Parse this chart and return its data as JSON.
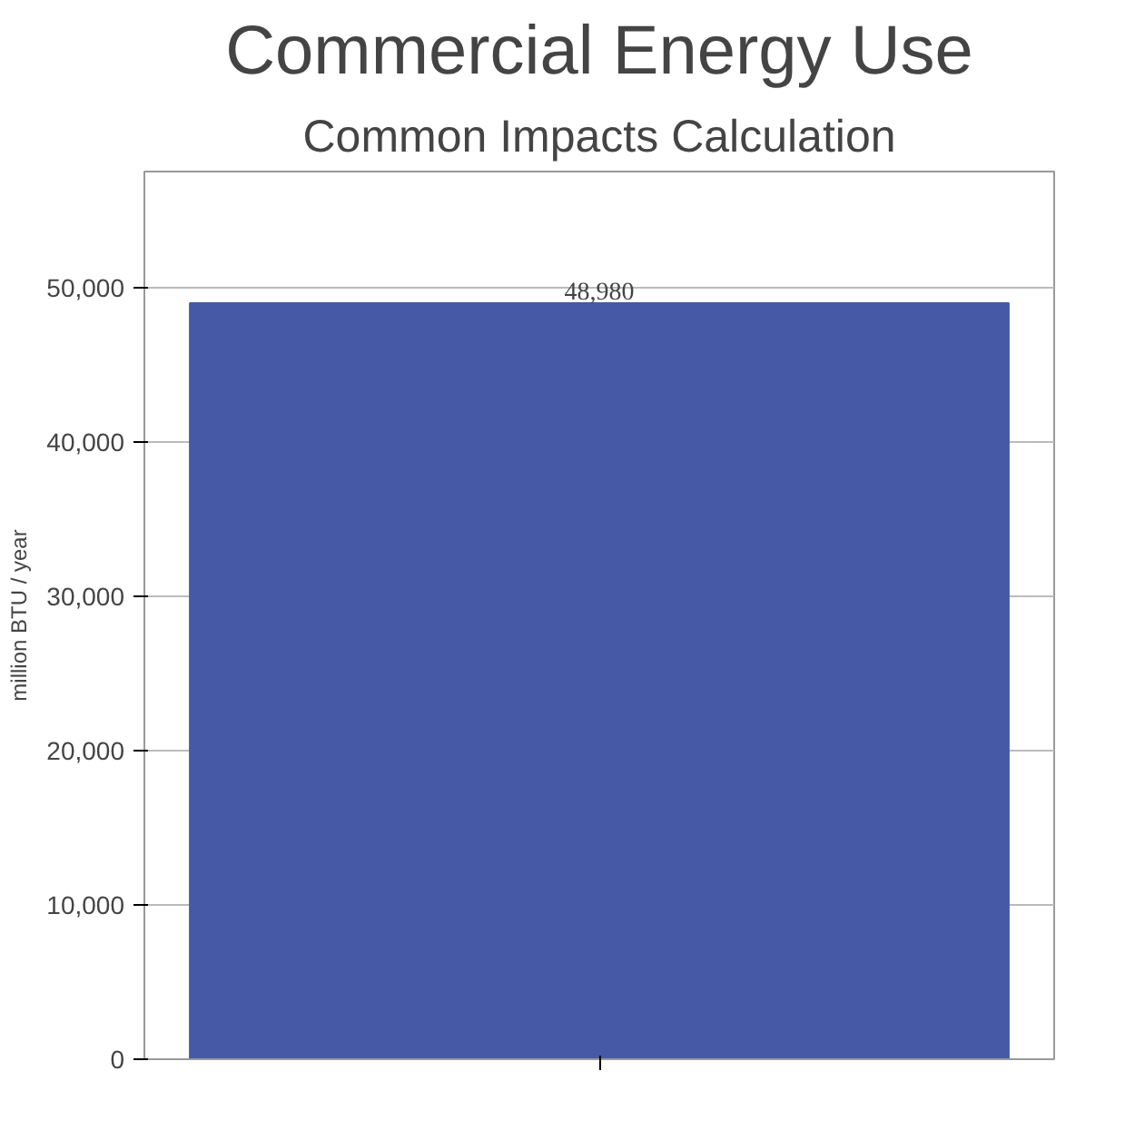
{
  "chart_data": {
    "type": "bar",
    "title": "Commercial Energy Use",
    "subtitle": "Common Impacts Calculation",
    "ylabel": "million BTU / year",
    "categories": [
      null
    ],
    "values": [
      48980
    ],
    "color": "#4559a6",
    "ylim": [
      0,
      57500
    ],
    "yticks": [
      {
        "value": 0,
        "label": "0"
      },
      {
        "value": 10000,
        "label": "10,000"
      },
      {
        "value": 20000,
        "label": "20,000"
      },
      {
        "value": 30000,
        "label": "30,000"
      },
      {
        "value": 40000,
        "label": "40,000"
      },
      {
        "value": 50000,
        "label": "50,000"
      }
    ],
    "grid": "y",
    "value_labels": [
      "48,980"
    ]
  }
}
